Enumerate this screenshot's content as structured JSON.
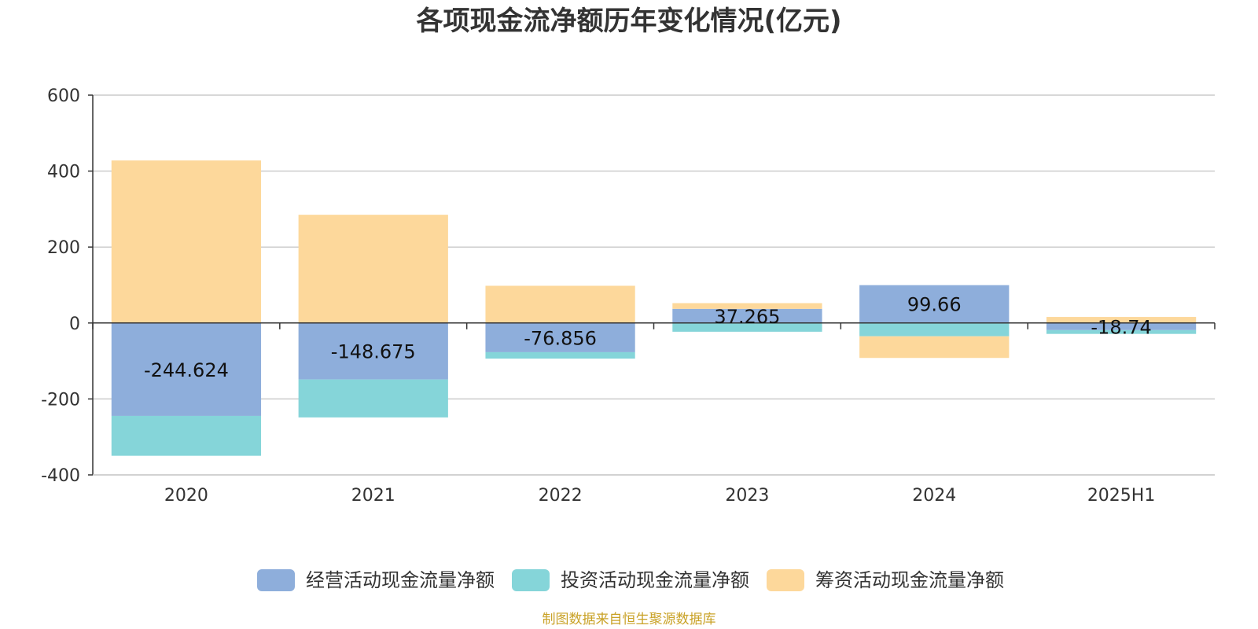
{
  "chart_data": {
    "type": "bar",
    "stacked": true,
    "title": "各项现金流净额历年变化情况(亿元)",
    "xlabel": "",
    "ylabel": "",
    "categories": [
      "2020",
      "2021",
      "2022",
      "2023",
      "2024",
      "2025H1"
    ],
    "ylim": [
      -400,
      600
    ],
    "yticks": [
      -400,
      -200,
      0,
      200,
      400,
      600
    ],
    "grid": true,
    "legend_position": "bottom",
    "series": [
      {
        "name": "经营活动现金流量净额",
        "color": "#8eaedb",
        "values": [
          -244.624,
          -148.675,
          -76.856,
          37.265,
          99.66,
          -18.74
        ],
        "data_labels": [
          "-244.624",
          "-148.675",
          "-76.856",
          "37.265",
          "99.66",
          "-18.74"
        ]
      },
      {
        "name": "投资活动现金流量净额",
        "color": "#85d5d9",
        "values": [
          -105,
          -100,
          -17,
          -23,
          -35,
          -10
        ]
      },
      {
        "name": "筹资活动现金流量净额",
        "color": "#fdd89b",
        "values": [
          428,
          285,
          98,
          15,
          -57,
          16
        ]
      }
    ]
  },
  "source": {
    "text": "制图数据来自恒生聚源数据库",
    "color": "#c9a227"
  }
}
